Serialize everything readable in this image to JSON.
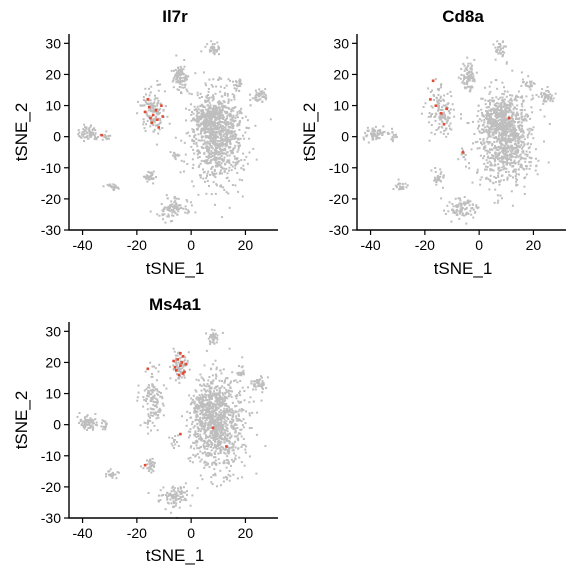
{
  "chart_data": [
    {
      "type": "scatter",
      "title": "Il7r",
      "xlabel": "tSNE_1",
      "ylabel": "tSNE_2",
      "xlim": [
        -45,
        32
      ],
      "ylim": [
        -30,
        33
      ],
      "xticks": [
        -40,
        -20,
        0,
        20
      ],
      "yticks": [
        -30,
        -20,
        -10,
        0,
        10,
        20,
        30
      ],
      "grid": false,
      "background_color": "#bebebe",
      "highlight_color": "#e34a33",
      "highlight_points": [
        {
          "x": -17.0,
          "y": 8.0
        },
        {
          "x": -15.5,
          "y": 9.5
        },
        {
          "x": -14.0,
          "y": 7.0
        },
        {
          "x": -12.5,
          "y": 5.5
        },
        {
          "x": -14.5,
          "y": 4.5
        },
        {
          "x": -11.0,
          "y": 10.0
        },
        {
          "x": -16.0,
          "y": 12.0
        },
        {
          "x": -12.0,
          "y": 3.0
        },
        {
          "x": -15.0,
          "y": 6.0
        },
        {
          "x": -13.0,
          "y": 8.5
        },
        {
          "x": -10.5,
          "y": 6.5
        },
        {
          "x": -33.0,
          "y": 0.5
        }
      ]
    },
    {
      "type": "scatter",
      "title": "Cd8a",
      "xlabel": "tSNE_1",
      "ylabel": "tSNE_2",
      "xlim": [
        -45,
        32
      ],
      "ylim": [
        -30,
        33
      ],
      "xticks": [
        -40,
        -20,
        0,
        20
      ],
      "yticks": [
        -30,
        -20,
        -10,
        0,
        10,
        20,
        30
      ],
      "grid": false,
      "background_color": "#bebebe",
      "highlight_color": "#e34a33",
      "highlight_points": [
        {
          "x": -17.0,
          "y": 18.0
        },
        {
          "x": -16.0,
          "y": 10.0
        },
        {
          "x": -14.0,
          "y": 7.5
        },
        {
          "x": -13.0,
          "y": 4.0
        },
        {
          "x": -18.0,
          "y": 12.0
        },
        {
          "x": -6.0,
          "y": -5.0
        },
        {
          "x": 11.0,
          "y": 6.0
        },
        {
          "x": -12.0,
          "y": 9.0
        }
      ]
    },
    {
      "type": "scatter",
      "title": "Ms4a1",
      "xlabel": "tSNE_1",
      "ylabel": "tSNE_2",
      "xlim": [
        -45,
        32
      ],
      "ylim": [
        -30,
        33
      ],
      "xticks": [
        -40,
        -20,
        0,
        20
      ],
      "yticks": [
        -30,
        -20,
        -10,
        0,
        10,
        20,
        30
      ],
      "grid": false,
      "background_color": "#bebebe",
      "highlight_color": "#e34a33",
      "highlight_points": [
        {
          "x": -5.0,
          "y": 21.0
        },
        {
          "x": -4.0,
          "y": 19.0
        },
        {
          "x": -3.0,
          "y": 22.0
        },
        {
          "x": -6.0,
          "y": 18.5
        },
        {
          "x": -2.5,
          "y": 17.0
        },
        {
          "x": -4.5,
          "y": 16.0
        },
        {
          "x": -3.5,
          "y": 20.0
        },
        {
          "x": -5.5,
          "y": 17.5
        },
        {
          "x": -2.0,
          "y": 19.5
        },
        {
          "x": -6.5,
          "y": 20.5
        },
        {
          "x": -4.0,
          "y": 23.0
        },
        {
          "x": -3.0,
          "y": 16.5
        },
        {
          "x": -16.0,
          "y": 18.0
        },
        {
          "x": -17.0,
          "y": -13.0
        },
        {
          "x": -4.0,
          "y": -3.0
        },
        {
          "x": 13.0,
          "y": -7.0
        },
        {
          "x": 8.0,
          "y": -1.0
        }
      ]
    }
  ]
}
